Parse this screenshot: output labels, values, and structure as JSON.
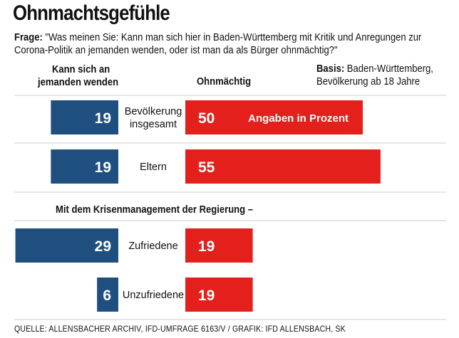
{
  "title": "Ohnmachtsgefühle",
  "question": {
    "label": "Frage:",
    "text": "\"Was meinen Sie: Kann man sich hier in Baden-Württemberg mit Kritik und Anregungen zur Corona-Politik an jemanden wenden, oder ist man da als Bürger ohnmächtig?\""
  },
  "basis": {
    "label": "Basis:",
    "line1": "Baden-Württemberg,",
    "line2": "Bevölkerung ab 18 Jahre"
  },
  "header_left_1": "Kann sich an",
  "header_left_2": "jemanden wenden",
  "header_right": "Ohnmächtig",
  "section_label": "Mit dem Krisenmanagement der Regierung –",
  "footer": "QUELLE: ALLENSBACHER ARCHIV, IFD-UMFRAGE 6163/V / GRAFIK: IFD ALLENSBACH, SK",
  "colors": {
    "left": "#1f4f7f",
    "right": "#e3201b",
    "divider": "#bbbbbb"
  },
  "chart_data": {
    "type": "bar",
    "orientation": "horizontal-diverging",
    "annotation": "Angaben in Prozent",
    "categories": [
      [
        "Bevölkerung",
        "insgesamt"
      ],
      [
        "Eltern"
      ],
      [
        "Zufriedene"
      ],
      [
        "Unzufriedene"
      ]
    ],
    "series": [
      {
        "name": "Kann sich an jemanden wenden",
        "values": [
          19,
          19,
          29,
          6
        ]
      },
      {
        "name": "Ohnmächtig",
        "values": [
          50,
          55,
          19,
          19
        ]
      }
    ]
  }
}
